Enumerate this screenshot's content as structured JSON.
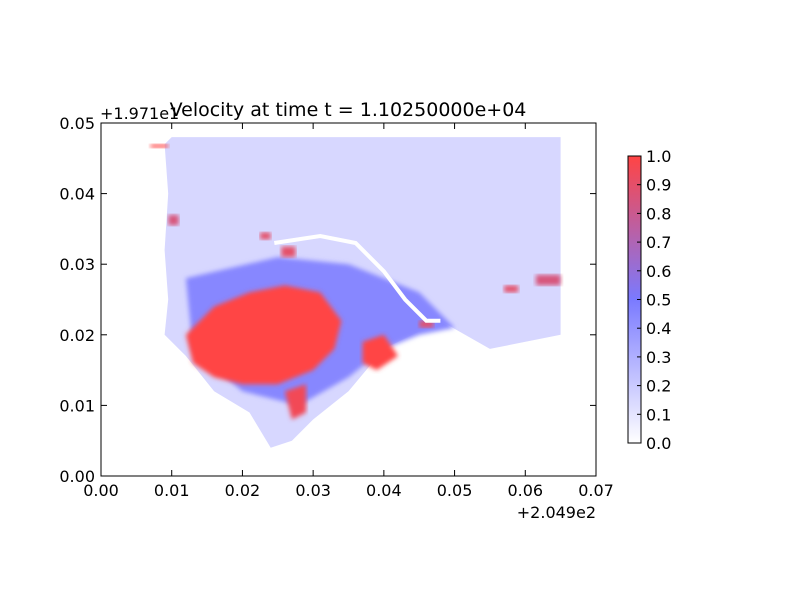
{
  "chart_data": {
    "type": "heatmap",
    "title": "Velocity at time t = 1.10250000e+04",
    "xlabel": "",
    "ylabel": "",
    "x_offset_label": "+2.049e2",
    "y_offset_label": "+1.971e1",
    "xlim": [
      0.0,
      0.07
    ],
    "ylim": [
      0.0,
      0.05
    ],
    "x_ticks": [
      "0.00",
      "0.01",
      "0.02",
      "0.03",
      "0.04",
      "0.05",
      "0.06",
      "0.07"
    ],
    "y_ticks": [
      "0.00",
      "0.01",
      "0.02",
      "0.03",
      "0.04",
      "0.05"
    ],
    "colorbar": {
      "range": [
        0.0,
        1.0
      ],
      "ticks": [
        "0.0",
        "0.1",
        "0.2",
        "0.3",
        "0.4",
        "0.5",
        "0.6",
        "0.7",
        "0.8",
        "0.9",
        "1.0"
      ],
      "colors": [
        "#ffffff",
        "#7a7aff",
        "#ff4444"
      ]
    },
    "grid": false,
    "regions": [
      {
        "name": "domain-background",
        "value": 0.15,
        "points": [
          [
            0.01,
            0.048
          ],
          [
            0.065,
            0.048
          ],
          [
            0.065,
            0.02
          ],
          [
            0.055,
            0.018
          ],
          [
            0.048,
            0.022
          ],
          [
            0.04,
            0.018
          ],
          [
            0.035,
            0.012
          ],
          [
            0.03,
            0.008
          ],
          [
            0.027,
            0.005
          ],
          [
            0.024,
            0.004
          ],
          [
            0.021,
            0.009
          ],
          [
            0.016,
            0.012
          ],
          [
            0.012,
            0.017
          ],
          [
            0.009,
            0.02
          ],
          [
            0.0095,
            0.025
          ],
          [
            0.009,
            0.032
          ],
          [
            0.0095,
            0.04
          ],
          [
            0.009,
            0.047
          ]
        ]
      },
      {
        "name": "medium-band",
        "value": 0.45,
        "points": [
          [
            0.012,
            0.028
          ],
          [
            0.025,
            0.031
          ],
          [
            0.035,
            0.03
          ],
          [
            0.045,
            0.026
          ],
          [
            0.05,
            0.021
          ],
          [
            0.045,
            0.02
          ],
          [
            0.04,
            0.018
          ],
          [
            0.035,
            0.014
          ],
          [
            0.028,
            0.01
          ],
          [
            0.02,
            0.012
          ],
          [
            0.013,
            0.018
          ]
        ]
      },
      {
        "name": "high-velocity-main",
        "value": 1.0,
        "points": [
          [
            0.012,
            0.02
          ],
          [
            0.016,
            0.024
          ],
          [
            0.021,
            0.026
          ],
          [
            0.026,
            0.027
          ],
          [
            0.031,
            0.026
          ],
          [
            0.034,
            0.022
          ],
          [
            0.033,
            0.018
          ],
          [
            0.03,
            0.015
          ],
          [
            0.025,
            0.013
          ],
          [
            0.02,
            0.013
          ],
          [
            0.016,
            0.014
          ],
          [
            0.013,
            0.016
          ]
        ]
      },
      {
        "name": "high-velocity-east",
        "value": 1.0,
        "points": [
          [
            0.037,
            0.019
          ],
          [
            0.04,
            0.02
          ],
          [
            0.042,
            0.017
          ],
          [
            0.039,
            0.015
          ],
          [
            0.037,
            0.016
          ]
        ]
      },
      {
        "name": "high-velocity-south",
        "value": 0.95,
        "points": [
          [
            0.026,
            0.012
          ],
          [
            0.029,
            0.013
          ],
          [
            0.029,
            0.009
          ],
          [
            0.027,
            0.008
          ]
        ]
      },
      {
        "name": "high-velocity-nw",
        "value": 1.0,
        "points": [
          [
            0.007,
            0.0465
          ],
          [
            0.0095,
            0.0465
          ],
          [
            0.0095,
            0.047
          ],
          [
            0.007,
            0.047
          ]
        ]
      },
      {
        "name": "high-velocity-spot-1",
        "value": 0.9,
        "points": [
          [
            0.0225,
            0.0335
          ],
          [
            0.024,
            0.0335
          ],
          [
            0.024,
            0.0345
          ],
          [
            0.0225,
            0.0345
          ]
        ]
      },
      {
        "name": "high-velocity-spot-2",
        "value": 0.9,
        "points": [
          [
            0.0255,
            0.031
          ],
          [
            0.0275,
            0.031
          ],
          [
            0.0275,
            0.0325
          ],
          [
            0.0255,
            0.0325
          ]
        ]
      },
      {
        "name": "high-velocity-spot-3",
        "value": 0.9,
        "points": [
          [
            0.045,
            0.021
          ],
          [
            0.047,
            0.021
          ],
          [
            0.047,
            0.022
          ],
          [
            0.045,
            0.022
          ]
        ]
      },
      {
        "name": "high-velocity-spot-4",
        "value": 0.9,
        "points": [
          [
            0.057,
            0.026
          ],
          [
            0.059,
            0.026
          ],
          [
            0.059,
            0.027
          ],
          [
            0.057,
            0.027
          ]
        ]
      },
      {
        "name": "high-velocity-spot-5",
        "value": 0.85,
        "points": [
          [
            0.0615,
            0.027
          ],
          [
            0.065,
            0.027
          ],
          [
            0.065,
            0.0285
          ],
          [
            0.0615,
            0.0285
          ]
        ]
      },
      {
        "name": "high-velocity-spot-6",
        "value": 0.85,
        "points": [
          [
            0.0095,
            0.0355
          ],
          [
            0.011,
            0.0355
          ],
          [
            0.011,
            0.037
          ],
          [
            0.0095,
            0.037
          ]
        ]
      }
    ],
    "channel": {
      "name": "dry-channel",
      "value": 0.0,
      "points": [
        [
          0.0245,
          0.033
        ],
        [
          0.031,
          0.034
        ],
        [
          0.036,
          0.033
        ],
        [
          0.04,
          0.029
        ],
        [
          0.043,
          0.025
        ],
        [
          0.046,
          0.022
        ],
        [
          0.048,
          0.022
        ]
      ]
    }
  }
}
